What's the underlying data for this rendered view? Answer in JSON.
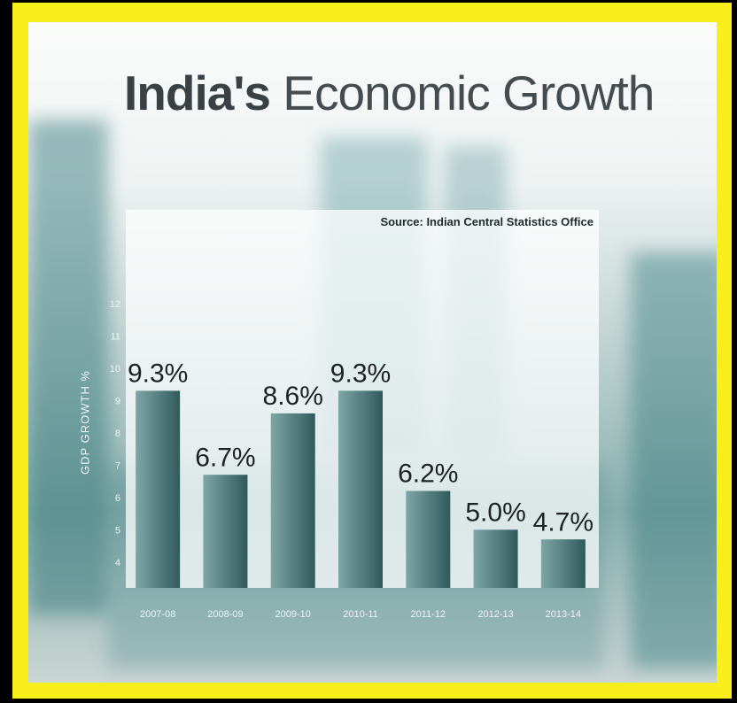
{
  "title_bold": "India's",
  "title_rest": " Economic Growth",
  "source": "Source: Indian Central Statistics Office",
  "colors": {
    "frame": "#f7ee1c",
    "bar_light": "#7fa6a6",
    "bar_dark": "#2f5a5c",
    "label": "#1e2224"
  },
  "chart_data": {
    "type": "bar",
    "categories": [
      "2007-08",
      "2008-09",
      "2009-10",
      "2010-11",
      "2011-12",
      "2012-13",
      "2013-14"
    ],
    "values": [
      9.3,
      6.7,
      8.6,
      9.3,
      6.2,
      5.0,
      4.7
    ],
    "data_labels": [
      "9.3%",
      "6.7%",
      "8.6%",
      "9.3%",
      "6.2%",
      "5.0%",
      "4.7%"
    ],
    "title": "India's Economic Growth",
    "xlabel": "",
    "ylabel": "GDP GROWTH %",
    "yticks": [
      4,
      5,
      6,
      7,
      8,
      9,
      10,
      11,
      12
    ],
    "ylim": [
      3.2,
      12.5
    ],
    "grid": false,
    "legend": "none"
  }
}
